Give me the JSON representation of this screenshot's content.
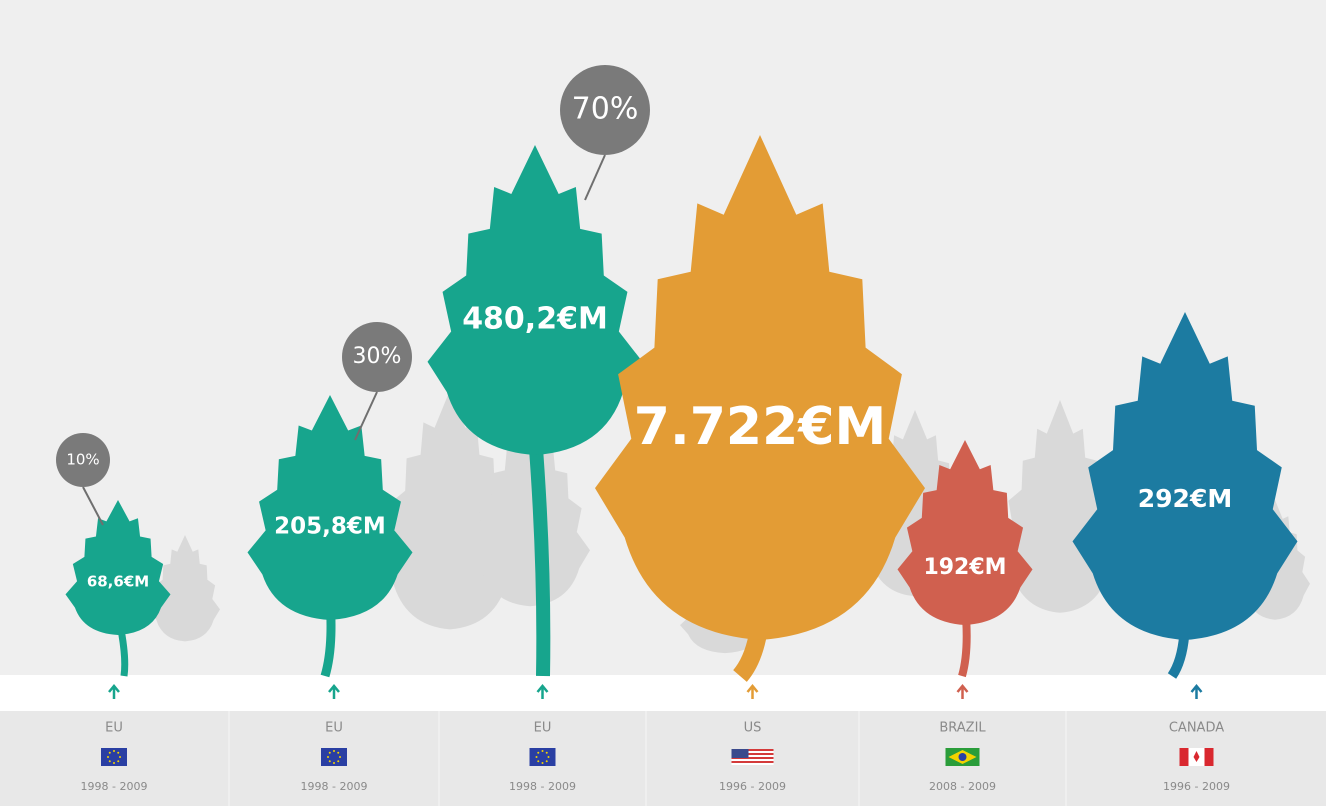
{
  "items": [
    {
      "amount": "68,6€M",
      "share": "10%",
      "region": "EU",
      "years": "1998 - 2009",
      "color": "#17a58d"
    },
    {
      "amount": "205,8€M",
      "share": "30%",
      "region": "EU",
      "years": "1998 - 2009",
      "color": "#17a58d"
    },
    {
      "amount": "480,2€M",
      "share": "70%",
      "region": "EU",
      "years": "1998 - 2009",
      "color": "#17a58d"
    },
    {
      "amount": "7.722€M",
      "region": "US",
      "years": "1996 - 2009",
      "color": "#e39c35"
    },
    {
      "amount": "192€M",
      "region": "BRAZIL",
      "years": "2008 - 2009",
      "color": "#d0604f"
    },
    {
      "amount": "292€M",
      "region": "CANADA",
      "years": "1996 - 2009",
      "color": "#1c7ba1"
    }
  ]
}
